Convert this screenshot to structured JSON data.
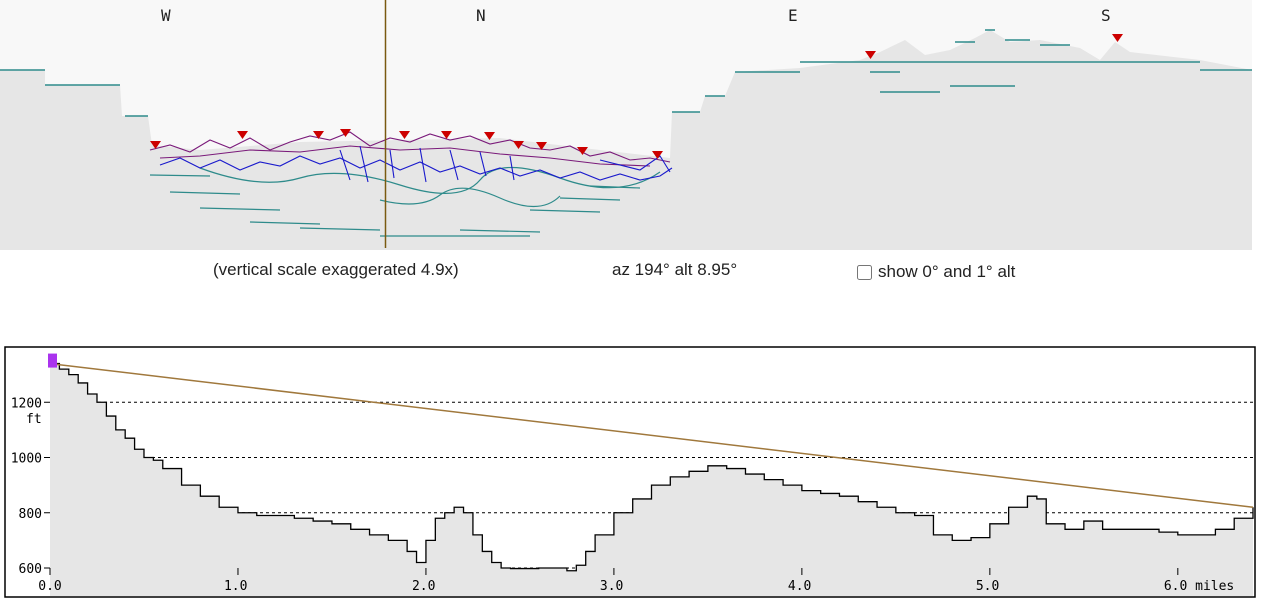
{
  "panorama": {
    "compass": [
      "W",
      "N",
      "E",
      "S"
    ],
    "caption": "(vertical scale exaggerated 4.9x)",
    "view_readout": "az 194° alt 8.95°",
    "checkbox_label": "show 0° and 1° alt",
    "checkbox_checked": false
  },
  "profile": {
    "y_ticks": [
      "1200",
      "1000",
      "800",
      "600"
    ],
    "y_unit": "ft",
    "x_ticks": [
      "0.0",
      "1.0",
      "2.0",
      "3.0",
      "4.0",
      "5.0",
      "6.0 miles"
    ]
  },
  "colors": {
    "terrain_fill": "#e6e6e6",
    "sky": "#f8f8f8",
    "ridge_teal": "#2e8b8b",
    "ridge_blue": "#1a1acc",
    "ridge_purple": "#7a1a7a",
    "peak_marker": "#cc0000",
    "sightline": "#a0783c",
    "observer_marker": "#aa33ee"
  },
  "chart_data": {
    "type": "area",
    "xlabel": "miles",
    "ylabel": "ft",
    "xlim": [
      0,
      6.4
    ],
    "ylim": [
      600,
      1400
    ],
    "grid": "dashed horizontal at 600, 800, 1000, 1200",
    "series": [
      {
        "x": [
          0.0,
          0.05,
          0.1,
          0.15,
          0.2,
          0.25,
          0.3,
          0.35,
          0.4,
          0.45,
          0.5,
          0.55,
          0.6,
          0.7,
          0.8,
          0.9,
          1.0,
          1.1,
          1.2,
          1.3,
          1.4,
          1.5,
          1.6,
          1.7,
          1.8,
          1.9,
          1.95,
          2.0,
          2.05,
          2.1,
          2.15,
          2.2,
          2.25,
          2.3,
          2.35,
          2.4,
          2.45,
          2.5,
          2.6,
          2.7,
          2.75,
          2.8,
          2.85,
          2.9,
          3.0,
          3.1,
          3.2,
          3.3,
          3.4,
          3.5,
          3.6,
          3.7,
          3.8,
          3.9,
          4.0,
          4.1,
          4.2,
          4.3,
          4.4,
          4.5,
          4.6,
          4.7,
          4.8,
          4.9,
          5.0,
          5.1,
          5.2,
          5.25,
          5.3,
          5.4,
          5.5,
          5.6,
          5.7,
          5.8,
          5.9,
          6.0,
          6.1,
          6.2,
          6.3,
          6.4
        ],
        "y": [
          1340,
          1320,
          1300,
          1270,
          1230,
          1200,
          1150,
          1100,
          1070,
          1030,
          1000,
          990,
          960,
          900,
          860,
          820,
          800,
          790,
          790,
          780,
          770,
          760,
          740,
          720,
          700,
          660,
          620,
          700,
          780,
          800,
          820,
          800,
          720,
          660,
          620,
          600,
          598,
          598,
          600,
          600,
          590,
          610,
          660,
          720,
          800,
          850,
          900,
          930,
          950,
          970,
          960,
          940,
          920,
          900,
          880,
          870,
          860,
          840,
          820,
          800,
          790,
          720,
          700,
          710,
          760,
          820,
          860,
          850,
          760,
          740,
          770,
          740,
          740,
          740,
          730,
          720,
          720,
          740,
          780,
          820
        ]
      }
    ],
    "sightline": {
      "x": [
        0.0,
        6.4
      ],
      "y": [
        1340,
        820
      ]
    }
  }
}
